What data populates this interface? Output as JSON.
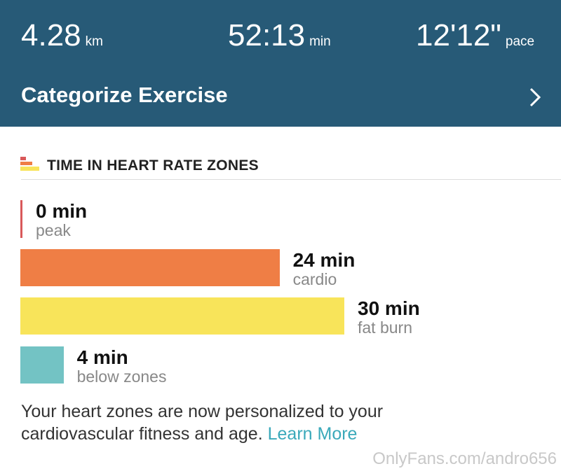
{
  "header": {
    "stats": [
      {
        "value": "4.28",
        "unit": "km"
      },
      {
        "value": "52:13",
        "unit": "min"
      },
      {
        "value": "12'12\"",
        "unit": "pace"
      }
    ],
    "action": "Categorize Exercise"
  },
  "chart_data": {
    "type": "bar",
    "title": "TIME IN HEART RATE ZONES",
    "categories": [
      "peak",
      "cardio",
      "fat burn",
      "below zones"
    ],
    "values": [
      0,
      24,
      30,
      4
    ],
    "value_labels": [
      "0 min",
      "24 min",
      "30 min",
      "4 min"
    ],
    "colors": [
      "#d9595a",
      "#ef7e45",
      "#f8e45a",
      "#73c3c4"
    ]
  },
  "footer": {
    "text": "Your heart zones are now personalized to your cardiovascular fitness and age.",
    "link": "Learn More"
  },
  "watermark": "OnlyFans.com/andro656"
}
